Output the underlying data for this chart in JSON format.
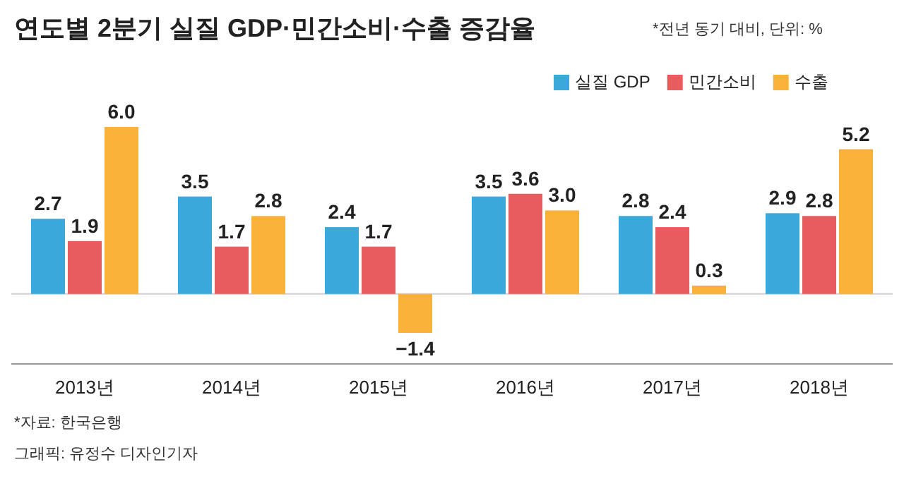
{
  "chart_data": {
    "type": "bar",
    "title": "연도별 2분기 실질 GDP·민간소비·수출 증감율",
    "subtitle": "*전년 동기 대비, 단위: %",
    "categories": [
      "2013년",
      "2014년",
      "2015년",
      "2016년",
      "2017년",
      "2018년"
    ],
    "series": [
      {
        "name": "실질 GDP",
        "color": "#3aa8db",
        "values": [
          2.7,
          3.5,
          2.4,
          3.5,
          2.8,
          2.9
        ],
        "value_labels": [
          "2.7",
          "3.5",
          "2.4",
          "3.5",
          "2.8",
          "2.9"
        ]
      },
      {
        "name": "민간소비",
        "color": "#e95c5e",
        "values": [
          1.9,
          1.7,
          1.7,
          3.6,
          2.4,
          2.8
        ],
        "value_labels": [
          "1.9",
          "1.7",
          "1.7",
          "3.6",
          "2.4",
          "2.8"
        ]
      },
      {
        "name": "수출",
        "color": "#f9b13a",
        "values": [
          6.0,
          2.8,
          -1.4,
          3.0,
          0.3,
          5.2
        ],
        "value_labels": [
          "6.0",
          "2.8",
          "−1.4",
          "3.0",
          "0.3",
          "5.2"
        ]
      }
    ],
    "legend": "top right",
    "annotations": [
      "*자료: 한국은행",
      "그래픽: 유정수 디자인기자"
    ]
  }
}
